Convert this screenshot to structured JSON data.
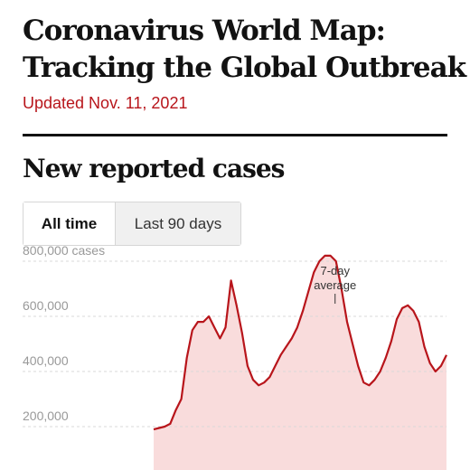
{
  "header": {
    "title_line1": "Coronavirus World Map:",
    "title_line2": "Tracking the Global Outbreak",
    "updated": "Updated Nov. 11, 2021"
  },
  "section": {
    "title": "New reported cases"
  },
  "toggle": {
    "options": [
      "All time",
      "Last 90 days"
    ],
    "selected": "All time"
  },
  "colors": {
    "accent": "#b8151b",
    "line": "#b8151b",
    "area": "#f9dcdc",
    "grid": "#d9d9d9"
  },
  "chart_data": {
    "type": "area",
    "ylabel_unit": "cases",
    "yticks": [
      {
        "value": 200000,
        "label": "200,000"
      },
      {
        "value": 400000,
        "label": "400,000"
      },
      {
        "value": 600000,
        "label": "600,000"
      },
      {
        "value": 800000,
        "label": "800,000 cases"
      }
    ],
    "ylim": [
      150000,
      850000
    ],
    "grid": true,
    "annotation": {
      "line1": "7-day",
      "line2": "average",
      "at_index": 33
    },
    "series": [
      {
        "values": [
          190000,
          195000,
          200000,
          210000,
          260000,
          300000,
          450000,
          550000,
          580000,
          580000,
          600000,
          560000,
          520000,
          560000,
          730000,
          640000,
          540000,
          420000,
          370000,
          350000,
          360000,
          380000,
          420000,
          460000,
          490000,
          520000,
          560000,
          620000,
          690000,
          760000,
          800000,
          820000,
          820000,
          800000,
          700000,
          580000,
          500000,
          420000,
          360000,
          350000,
          370000,
          400000,
          450000,
          510000,
          590000,
          630000,
          640000,
          620000,
          580000,
          490000,
          430000,
          400000,
          420000,
          460000
        ]
      }
    ]
  }
}
